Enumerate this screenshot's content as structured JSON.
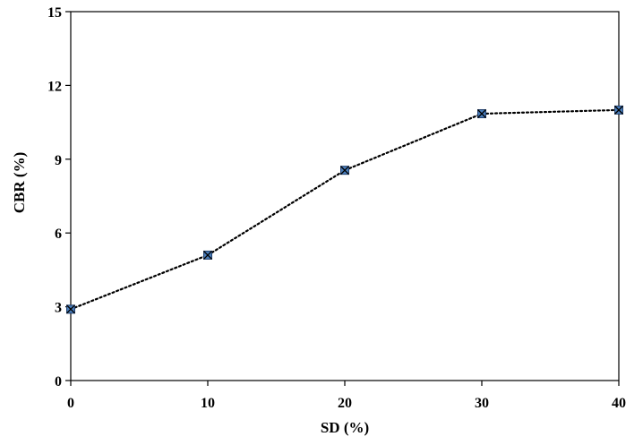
{
  "chart_data": {
    "type": "line",
    "xlabel": "SD (%)",
    "ylabel": "CBR (%)",
    "xlim": [
      0,
      40
    ],
    "ylim": [
      0,
      15
    ],
    "xticks": [
      0,
      10,
      20,
      30,
      40
    ],
    "yticks": [
      0,
      3,
      6,
      9,
      12,
      15
    ],
    "grid": false,
    "legend": "none",
    "series": [
      {
        "x": [
          0,
          10,
          20,
          30,
          40
        ],
        "y": [
          2.9,
          5.1,
          8.55,
          10.85,
          11.0
        ],
        "line_style": "dotted",
        "marker": "square-x",
        "marker_color": "#4a7ebb",
        "line_color": "#000000"
      }
    ]
  }
}
